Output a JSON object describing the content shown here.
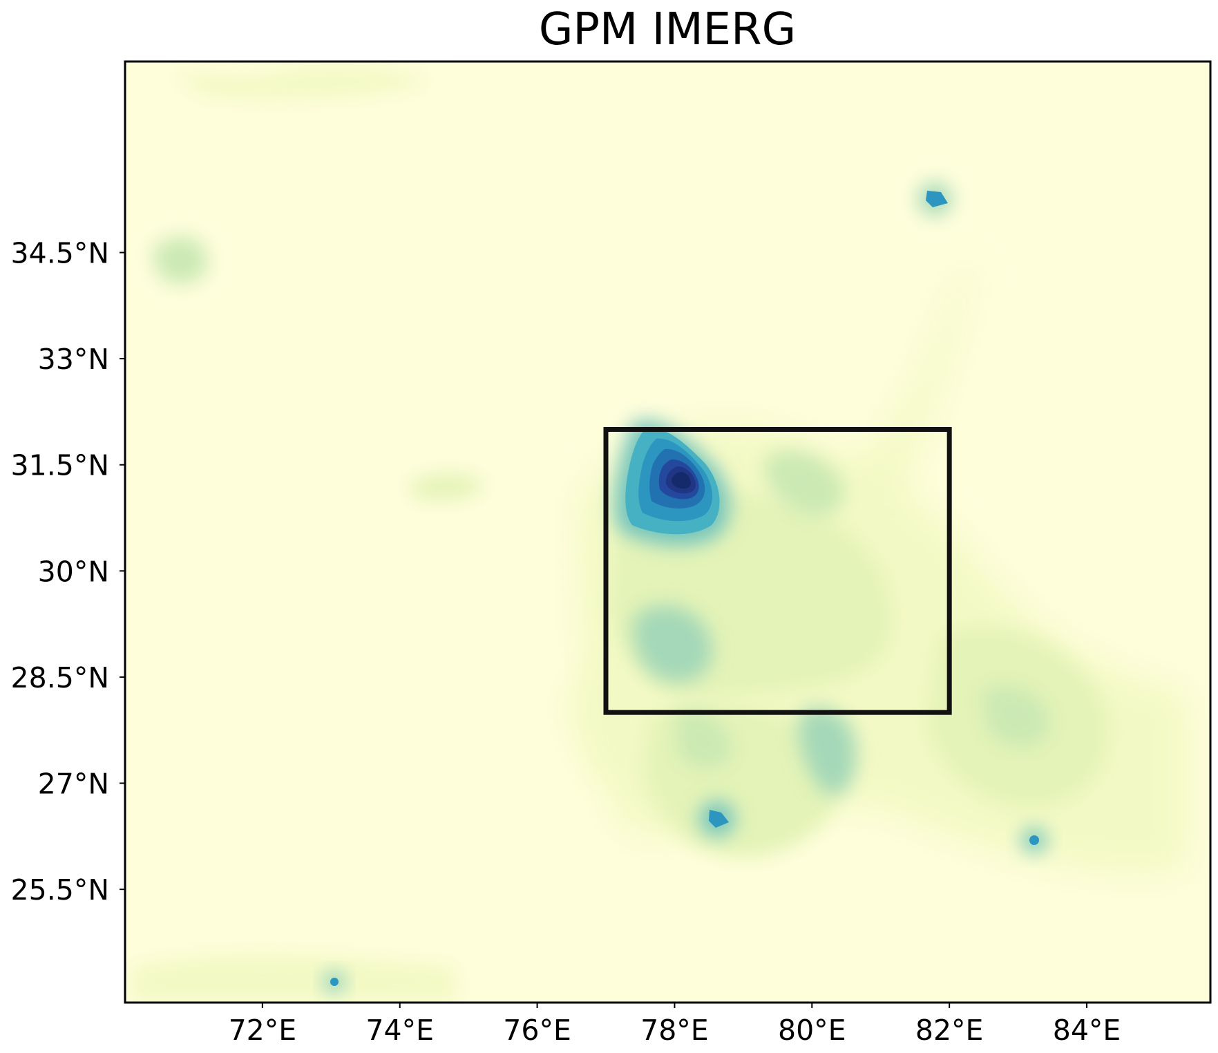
{
  "map": {
    "title": "GPM IMERG",
    "extent": {
      "lon_min": 70.0,
      "lon_max": 85.8,
      "lat_min": 23.9,
      "lat_max": 37.2
    },
    "x_ticks": [
      {
        "value": 72,
        "label": "72°E"
      },
      {
        "value": 74,
        "label": "74°E"
      },
      {
        "value": 76,
        "label": "76°E"
      },
      {
        "value": 78,
        "label": "78°E"
      },
      {
        "value": 80,
        "label": "80°E"
      },
      {
        "value": 82,
        "label": "82°E"
      },
      {
        "value": 84,
        "label": "84°E"
      }
    ],
    "y_ticks": [
      {
        "value": 34.5,
        "label": "34.5°N"
      },
      {
        "value": 33,
        "label": "33°N"
      },
      {
        "value": 31.5,
        "label": "31.5°N"
      },
      {
        "value": 30,
        "label": "30°N"
      },
      {
        "value": 28.5,
        "label": "28.5°N"
      },
      {
        "value": 27,
        "label": "27°N"
      },
      {
        "value": 25.5,
        "label": "25.5°N"
      }
    ],
    "study_box": {
      "lon_min": 77.0,
      "lon_max": 82.0,
      "lat_min": 28.0,
      "lat_max": 32.0
    },
    "colormap": "YlGnBu",
    "colors": {
      "background": "#fefedb",
      "frame": "#000000",
      "box": "#111111",
      "levels": [
        "#fefedb",
        "#f3f9c4",
        "#e4f3b7",
        "#cbe9b4",
        "#a4d8b8",
        "#74c5bd",
        "#45b1c2",
        "#2c96c0",
        "#2272b2",
        "#24489d",
        "#213585",
        "#142a6b"
      ]
    },
    "precip_features": [
      {
        "lon": 78.1,
        "lat": 30.8,
        "rx": 1.0,
        "ry": 0.8,
        "level": 11
      },
      {
        "lon": 79.2,
        "lat": 30.5,
        "rx": 1.5,
        "ry": 0.7,
        "level": 3
      },
      {
        "lon": 77.9,
        "lat": 28.7,
        "rx": 0.8,
        "ry": 0.6,
        "level": 4
      },
      {
        "lon": 80.2,
        "lat": 26.9,
        "rx": 0.8,
        "ry": 0.6,
        "level": 5
      },
      {
        "lon": 78.7,
        "lat": 26.4,
        "rx": 0.6,
        "ry": 0.5,
        "level": 7
      },
      {
        "lon": 81.9,
        "lat": 34.3,
        "rx": 0.35,
        "ry": 0.4,
        "level": 7
      },
      {
        "lon": 83.3,
        "lat": 26.2,
        "rx": 0.3,
        "ry": 0.3,
        "level": 6
      },
      {
        "lon": 73.1,
        "lat": 24.3,
        "rx": 0.25,
        "ry": 0.25,
        "level": 6
      },
      {
        "lon": 70.7,
        "lat": 33.8,
        "rx": 0.6,
        "ry": 0.4,
        "level": 3
      },
      {
        "lon": 83.3,
        "lat": 27.8,
        "rx": 1.5,
        "ry": 1.0,
        "level": 3
      },
      {
        "lon": 79.8,
        "lat": 29.2,
        "rx": 2.0,
        "ry": 1.1,
        "level": 2
      },
      {
        "lon": 80.5,
        "lat": 32.8,
        "rx": 1.5,
        "ry": 0.8,
        "level": 1
      }
    ]
  }
}
